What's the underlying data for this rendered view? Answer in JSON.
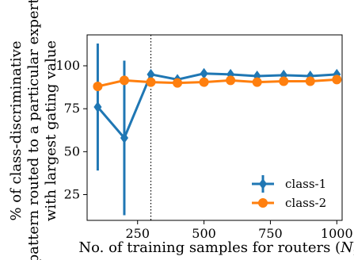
{
  "chart_data": {
    "type": "line",
    "title": "",
    "xlabel": "No. of training samples for routers ($N_r$)",
    "xlabel_text": "No. of training samples for routers (",
    "xlabel_var": "N",
    "xlabel_sub": "r",
    "xlabel_close": ")",
    "ylabel_lines": [
      "% of class-discriminative",
      "pattern routed to a particular expert",
      "with largest gating value"
    ],
    "xlim": [
      60,
      1020
    ],
    "ylim": [
      10,
      118
    ],
    "xticks": [
      250,
      500,
      750,
      1000
    ],
    "yticks": [
      25,
      50,
      75,
      100
    ],
    "vline_x": 300,
    "grid": false,
    "legend_position": "lower-right",
    "series": [
      {
        "name": "class-1",
        "color": "#1f77b4",
        "marker": "diamond",
        "x": [
          100,
          200,
          300,
          400,
          500,
          600,
          700,
          800,
          900,
          1000
        ],
        "y": [
          76,
          58,
          95,
          92,
          95.5,
          95,
          94,
          94.5,
          94,
          95
        ],
        "err": [
          37,
          45,
          0,
          0,
          0,
          0,
          0,
          0,
          0,
          0
        ]
      },
      {
        "name": "class-2",
        "color": "#ff7f0e",
        "marker": "circle",
        "x": [
          100,
          200,
          300,
          400,
          500,
          600,
          700,
          800,
          900,
          1000
        ],
        "y": [
          88,
          91.5,
          90.5,
          90,
          90.5,
          91.5,
          90.5,
          91,
          91,
          92
        ],
        "err": [
          0,
          0,
          0,
          0,
          0,
          0,
          0,
          0,
          0,
          0
        ]
      }
    ]
  }
}
